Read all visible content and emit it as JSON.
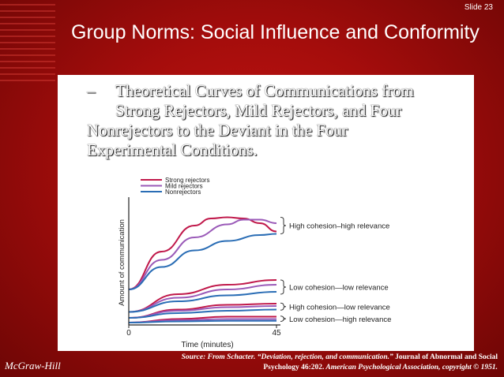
{
  "slide": {
    "number_label": "Slide 23",
    "title": "Group Norms: Social Influence and Conformity",
    "bullet_dash": "–",
    "bullet_line1": "Theoretical Curves of Communications from",
    "bullet_line2": "Strong Rejectors, Mild Rejectors, and Four",
    "bullet_line3": "Nonrejectors to the Deviant in the Four",
    "bullet_line4": "Experimental Conditions.",
    "publisher": "McGraw-Hill",
    "source_part1": "Source: From Schacter. “Deviation, rejection, and communication.”",
    "source_part2": " Journal of Abnormal and Social",
    "source_part3": "Psychology 46:202.",
    "source_part4": " American Psychological Association, copyright © 1951."
  },
  "colors": {
    "background": "#b20f0d",
    "strong_rejectors": "#c0184a",
    "mild_rejectors": "#9a5ab8",
    "nonrejectors": "#2a6db5"
  },
  "chart_data": {
    "type": "line",
    "xlabel": "Time (minutes)",
    "ylabel": "Amount of communication",
    "x_ticks": [
      "0",
      "45"
    ],
    "xlim": [
      0,
      45
    ],
    "ylim": [
      0,
      100
    ],
    "legend": [
      "Strong rejectors",
      "Mild rejectors",
      "Nonrejectors"
    ],
    "legend_position": "top-left",
    "groups": [
      {
        "condition": "High cohesion–high relevance",
        "series": [
          {
            "name": "Strong rejectors",
            "x": [
              0,
              10,
              20,
              25,
              30,
              35,
              40,
              45
            ],
            "y": [
              30,
              62,
              84,
              90,
              91,
              90,
              86,
              79
            ]
          },
          {
            "name": "Mild rejectors",
            "x": [
              0,
              10,
              20,
              30,
              35,
              40,
              45
            ],
            "y": [
              30,
              55,
              74,
              85,
              89,
              89,
              86
            ]
          },
          {
            "name": "Nonrejectors",
            "x": [
              0,
              10,
              20,
              30,
              40,
              45
            ],
            "y": [
              30,
              49,
              63,
              71,
              76,
              77
            ]
          }
        ]
      },
      {
        "condition": "Low cohesion—low relevance",
        "series": [
          {
            "name": "Strong rejectors",
            "x": [
              0,
              15,
              30,
              45
            ],
            "y": [
              11,
              26,
              34,
              38
            ]
          },
          {
            "name": "Mild rejectors",
            "x": [
              0,
              15,
              30,
              45
            ],
            "y": [
              11,
              23,
              30,
              34
            ]
          },
          {
            "name": "Nonrejectors",
            "x": [
              0,
              15,
              30,
              45
            ],
            "y": [
              11,
              20,
              25,
              28
            ]
          }
        ]
      },
      {
        "condition": "High cohesion—low relevance",
        "series": [
          {
            "name": "Strong rejectors",
            "x": [
              0,
              15,
              30,
              45
            ],
            "y": [
              6,
              13,
              17,
              18
            ]
          },
          {
            "name": "Mild rejectors",
            "x": [
              0,
              15,
              30,
              45
            ],
            "y": [
              6,
              12,
              15,
              16
            ]
          },
          {
            "name": "Nonrejectors",
            "x": [
              0,
              15,
              30,
              45
            ],
            "y": [
              6,
              10,
              12,
              13
            ]
          }
        ]
      },
      {
        "condition": "Low cohesion—high relevance",
        "series": [
          {
            "name": "Strong rejectors",
            "x": [
              0,
              15,
              30,
              45
            ],
            "y": [
              2,
              5,
              7,
              7
            ]
          },
          {
            "name": "Mild rejectors",
            "x": [
              0,
              15,
              30,
              45
            ],
            "y": [
              2,
              4,
              5,
              5
            ]
          },
          {
            "name": "Nonrejectors",
            "x": [
              0,
              15,
              30,
              45
            ],
            "y": [
              2,
              3,
              3.5,
              3.5
            ]
          }
        ]
      }
    ]
  }
}
